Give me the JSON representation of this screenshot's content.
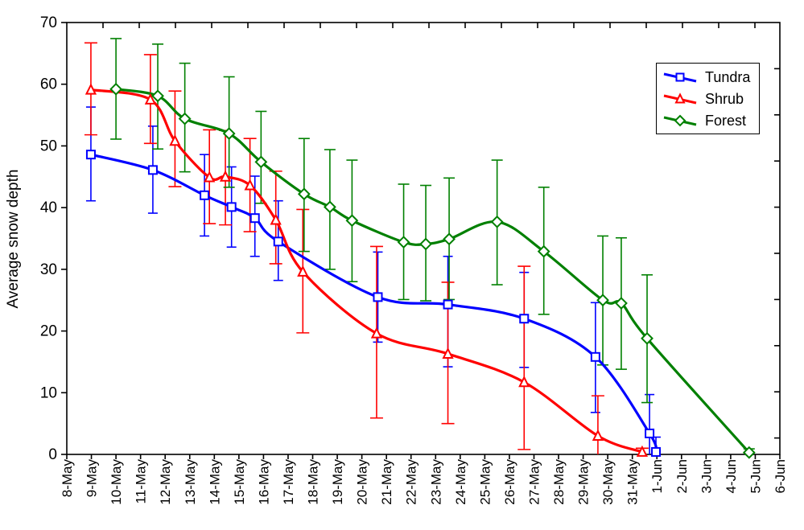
{
  "chart_data": {
    "type": "line",
    "title": "",
    "xlabel": "",
    "ylabel": "Average snow depth",
    "ylim": [
      0,
      70
    ],
    "y_ticks": [
      0,
      10,
      20,
      30,
      40,
      50,
      60,
      70
    ],
    "x_tick_labels": [
      "8-May",
      "9-May",
      "10-May",
      "11-May",
      "12-May",
      "13-May",
      "14-May",
      "15-May",
      "16-May",
      "17-May",
      "18-May",
      "19-May",
      "20-May",
      "21-May",
      "22-May",
      "23-May",
      "24-May",
      "25-May",
      "26-May",
      "27-May",
      "28-May",
      "29-May",
      "30-May",
      "31-May",
      "1-Jun",
      "2-Jun",
      "3-Jun",
      "4-Jun",
      "5-Jun",
      "6-Jun"
    ],
    "x_unit": "days since 8-May (fractional day offsets)",
    "grid": false,
    "legend_position": "upper-right",
    "line_style": "smoothed",
    "error_bars": true,
    "point_format": [
      "x_day_offset",
      "y_value",
      "err_low",
      "err_high",
      "low_clipped_at_zero"
    ],
    "series": [
      {
        "name": "Tundra",
        "color": "#0000ff",
        "marker": "square",
        "cap_half": 6,
        "points": [
          [
            0.98,
            48.6,
            41.1,
            56.3,
            0
          ],
          [
            3.5,
            46.1,
            39.1,
            53.2,
            0
          ],
          [
            5.6,
            42.0,
            35.4,
            48.6,
            0
          ],
          [
            6.7,
            40.1,
            33.6,
            46.6,
            0
          ],
          [
            7.65,
            38.3,
            32.1,
            45.1,
            0
          ],
          [
            8.6,
            34.5,
            28.2,
            41.1,
            0
          ],
          [
            12.65,
            25.5,
            18.2,
            32.8,
            0
          ],
          [
            15.5,
            24.3,
            14.2,
            32.1,
            0
          ],
          [
            18.6,
            22.0,
            14.1,
            29.5,
            0
          ],
          [
            21.5,
            15.8,
            6.8,
            24.6,
            0
          ],
          [
            23.7,
            3.4,
            0,
            9.7,
            1
          ],
          [
            23.96,
            0.4,
            0,
            2.8,
            1
          ]
        ]
      },
      {
        "name": "Shrub",
        "color": "#ff0000",
        "marker": "triangle-up",
        "cap_half": 8,
        "points": [
          [
            0.98,
            59.1,
            51.8,
            66.7,
            0
          ],
          [
            3.4,
            57.5,
            50.4,
            64.8,
            0
          ],
          [
            4.4,
            50.8,
            43.4,
            58.9,
            0
          ],
          [
            5.8,
            44.9,
            37.4,
            52.6,
            0
          ],
          [
            6.45,
            45.0,
            37.2,
            52.5,
            0
          ],
          [
            7.45,
            43.6,
            36.1,
            51.2,
            0
          ],
          [
            8.5,
            38.0,
            30.9,
            45.9,
            0
          ],
          [
            9.6,
            29.6,
            19.7,
            39.7,
            0
          ],
          [
            12.6,
            19.6,
            5.9,
            33.7,
            0
          ],
          [
            15.5,
            16.3,
            5.0,
            27.9,
            0
          ],
          [
            18.6,
            11.7,
            0.8,
            30.5,
            0
          ],
          [
            21.6,
            3.0,
            0,
            9.5,
            1
          ],
          [
            23.4,
            0.4,
            0,
            1.0,
            1
          ]
        ]
      },
      {
        "name": "Forest",
        "color": "#008000",
        "marker": "diamond",
        "cap_half": 7,
        "points": [
          [
            2.0,
            59.2,
            51.1,
            67.4,
            0
          ],
          [
            3.7,
            58.1,
            49.5,
            66.5,
            0
          ],
          [
            4.8,
            54.4,
            45.8,
            63.4,
            0
          ],
          [
            6.6,
            52.0,
            43.3,
            61.2,
            0
          ],
          [
            7.9,
            47.4,
            40.7,
            55.6,
            0
          ],
          [
            9.65,
            42.2,
            32.9,
            51.2,
            0
          ],
          [
            10.7,
            40.1,
            30.0,
            49.4,
            0
          ],
          [
            11.6,
            37.9,
            28.0,
            47.7,
            0
          ],
          [
            13.7,
            34.4,
            25.1,
            43.8,
            0
          ],
          [
            14.6,
            34.1,
            24.9,
            43.6,
            0
          ],
          [
            15.55,
            34.9,
            25.1,
            44.8,
            0
          ],
          [
            17.5,
            37.7,
            27.5,
            47.7,
            0
          ],
          [
            19.4,
            32.9,
            22.7,
            43.3,
            0
          ],
          [
            21.8,
            25.0,
            14.5,
            35.4,
            0
          ],
          [
            22.55,
            24.5,
            13.8,
            35.1,
            0
          ],
          [
            23.6,
            18.8,
            8.4,
            29.1,
            0
          ],
          [
            27.75,
            0.3,
            0,
            0.9,
            1
          ]
        ]
      }
    ]
  }
}
